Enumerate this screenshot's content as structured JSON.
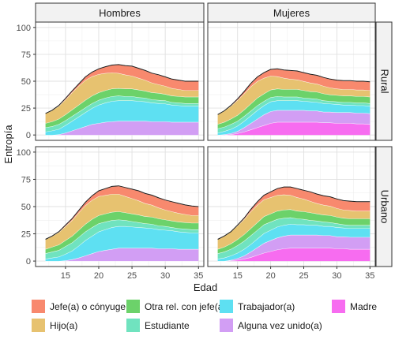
{
  "chart_data": {
    "type": "area",
    "stacked": true,
    "xlabel": "Edad",
    "ylabel": "Entropía",
    "xlim": [
      10.5,
      35.8
    ],
    "ylim": [
      -5,
      105
    ],
    "x_ticks": [
      15,
      20,
      25,
      30,
      35
    ],
    "y_ticks": [
      0,
      25,
      50,
      75,
      100
    ],
    "grid": true,
    "legend_position": "bottom",
    "facet_columns": [
      "Hombres",
      "Mujeres"
    ],
    "facet_rows": [
      "Rural",
      "Urbano"
    ],
    "x": [
      12,
      13,
      14,
      15,
      16,
      17,
      18,
      19,
      20,
      21,
      22,
      23,
      24,
      25,
      26,
      27,
      28,
      29,
      30,
      31,
      32,
      33,
      34,
      35
    ],
    "series_order": [
      "Madre",
      "Alguna vez unido(a)",
      "Trabajador(a)",
      "Estudiante",
      "Otra rel. con jefe(a)",
      "Hijo(a)",
      "Jefe(a) o cónyuge"
    ],
    "colors": {
      "Jefe(a) o cónyuge": "#f8896e",
      "Otra rel. con jefe(a)": "#6cd26a",
      "Trabajador(a)": "#5ee0f2",
      "Madre": "#f76cf0",
      "Hijo(a)": "#e7c270",
      "Estudiante": "#70e3bf",
      "Alguna vez unido(a)": "#d29ef4"
    },
    "legend": [
      "Jefe(a) o cónyuge",
      "Otra rel. con jefe(a)",
      "Trabajador(a)",
      "Madre",
      "Hijo(a)",
      "Estudiante",
      "Alguna vez unido(a)"
    ],
    "panels": [
      {
        "column": "Hombres",
        "row": "Rural",
        "series": [
          {
            "name": "Madre",
            "values": [
              0,
              0,
              0,
              0,
              0,
              0,
              0,
              0,
              0,
              0,
              0,
              0,
              0,
              0,
              0,
              0,
              0,
              0,
              0,
              0,
              0,
              0,
              0,
              0
            ]
          },
          {
            "name": "Alguna vez unido(a)",
            "values": [
              0,
              0,
              0.5,
              2,
              4,
              6,
              8,
              10,
              11,
              12,
              12.5,
              13,
              13,
              13,
              13,
              13,
              12.5,
              12.5,
              12.5,
              12,
              12,
              12,
              12,
              12
            ]
          },
          {
            "name": "Trabajador(a)",
            "values": [
              3,
              4,
              5,
              7,
              9,
              11,
              13,
              15,
              17,
              18,
              19,
              19,
              19,
              19,
              18.5,
              18,
              17.5,
              17,
              16.5,
              16,
              15.5,
              15,
              15,
              15
            ]
          },
          {
            "name": "Estudiante",
            "values": [
              4,
              4,
              4.5,
              4.5,
              4.5,
              4.5,
              4.5,
              4.5,
              4.5,
              4.5,
              4.5,
              4.5,
              4,
              4,
              3.5,
              3.5,
              3,
              3,
              3,
              2.5,
              2.5,
              2.5,
              2.5,
              2.5
            ]
          },
          {
            "name": "Otra rel. con jefe(a)",
            "values": [
              4,
              4.5,
              5,
              5.5,
              6,
              6.5,
              7,
              7,
              7,
              7,
              7,
              7,
              7,
              7,
              7,
              6.5,
              6.5,
              6.5,
              6,
              6,
              6,
              6,
              6,
              6
            ]
          },
          {
            "name": "Hijo(a)",
            "values": [
              9,
              10.5,
              12,
              14,
              16,
              17.5,
              18.5,
              18,
              17,
              16,
              15,
              14,
              13,
              12,
              11,
              10,
              9,
              8,
              7.5,
              7,
              6.5,
              6,
              6,
              6
            ]
          },
          {
            "name": "Jefe(a) o cónyuge",
            "values": [
              0,
              0,
              0.5,
              1,
              1.5,
              2,
              3,
              4,
              5,
              6,
              7,
              8,
              8.5,
              9,
              9,
              9,
              9,
              9,
              8.5,
              8.5,
              8.5,
              8.5,
              8.5,
              8.5
            ]
          }
        ]
      },
      {
        "column": "Mujeres",
        "row": "Rural",
        "series": [
          {
            "name": "Madre",
            "values": [
              0,
              0,
              0.5,
              1.5,
              3,
              5,
              7,
              9,
              11,
              12,
              12,
              12,
              12,
              12,
              12,
              12,
              11.5,
              11.5,
              11,
              11,
              11,
              10.5,
              10.5,
              10
            ]
          },
          {
            "name": "Alguna vez unido(a)",
            "values": [
              0,
              0.5,
              1,
              2,
              4,
              6,
              8,
              10,
              11,
              11,
              11,
              11,
              11,
              11,
              10.5,
              10.5,
              10,
              10,
              10,
              10,
              10,
              10,
              10,
              10
            ]
          },
          {
            "name": "Trabajador(a)",
            "values": [
              2,
              3,
              4,
              5,
              6,
              7,
              8,
              8.5,
              9,
              9,
              9,
              9,
              9,
              8.5,
              8.5,
              8,
              8,
              7.5,
              7.5,
              7,
              7,
              7,
              7,
              7
            ]
          },
          {
            "name": "Estudiante",
            "values": [
              4,
              4,
              4.5,
              4.5,
              4.5,
              4.5,
              4.5,
              4,
              4,
              4,
              3.5,
              3.5,
              3.5,
              3,
              3,
              3,
              2.5,
              2.5,
              2.5,
              2.5,
              2.5,
              2.5,
              2.5,
              2.5
            ]
          },
          {
            "name": "Otra rel. con jefe(a)",
            "values": [
              4,
              4.5,
              5,
              5.5,
              6,
              6.5,
              7,
              7,
              7,
              7,
              7,
              7,
              7,
              7,
              6.5,
              6.5,
              6.5,
              6,
              6,
              6,
              6,
              6,
              6,
              6
            ]
          },
          {
            "name": "Hijo(a)",
            "values": [
              9,
              10.5,
              12,
              14,
              15,
              16,
              15.5,
              14.5,
              13,
              11.5,
              10.5,
              9.5,
              9,
              8.5,
              8,
              7.5,
              7,
              6.5,
              6,
              6,
              6,
              6,
              6,
              6
            ]
          },
          {
            "name": "Jefe(a) o cónyuge",
            "values": [
              0,
              0,
              0.5,
              1,
              2,
              3,
              4,
              5,
              6,
              7,
              7.5,
              8,
              8,
              8,
              8,
              8,
              8,
              8,
              8,
              8,
              8,
              8,
              8,
              8
            ]
          }
        ]
      },
      {
        "column": "Hombres",
        "row": "Urbano",
        "series": [
          {
            "name": "Madre",
            "values": [
              0,
              0,
              0,
              0,
              0,
              0,
              0,
              0,
              0,
              0,
              0,
              0,
              0,
              0,
              0,
              0,
              0,
              0,
              0,
              0,
              0,
              0,
              0,
              0
            ]
          },
          {
            "name": "Alguna vez unido(a)",
            "values": [
              0,
              0,
              0,
              0.5,
              1.5,
              3,
              5,
              7,
              9,
              10,
              11,
              12,
              12,
              12,
              12,
              12,
              12,
              11.5,
              11.5,
              11.5,
              11,
              11,
              11,
              11
            ]
          },
          {
            "name": "Trabajador(a)",
            "values": [
              2,
              3,
              4,
              6,
              8,
              11,
              14,
              16,
              18,
              19,
              20,
              20,
              20,
              19.5,
              19,
              18.5,
              18,
              17.5,
              17,
              16.5,
              16,
              15.5,
              15,
              15
            ]
          },
          {
            "name": "Estudiante",
            "values": [
              5,
              5.5,
              6,
              7,
              7.5,
              8,
              8,
              8,
              7.5,
              7,
              6.5,
              6,
              5.5,
              5,
              4.5,
              4,
              4,
              3.5,
              3.5,
              3,
              3,
              3,
              3,
              3
            ]
          },
          {
            "name": "Otra rel. con jefe(a)",
            "values": [
              4,
              4.5,
              5,
              5.5,
              6,
              6.5,
              7,
              7.5,
              7.5,
              7.5,
              7.5,
              7.5,
              7,
              7,
              7,
              6.5,
              6.5,
              6.5,
              6,
              6,
              6,
              6,
              6,
              6
            ]
          },
          {
            "name": "Hijo(a)",
            "values": [
              9,
              10,
              11.5,
              13,
              14.5,
              16,
              17,
              17.5,
              17.5,
              17,
              16.5,
              16,
              15,
              14,
              13,
              12,
              11,
              10,
              9,
              8.5,
              8,
              7.5,
              7,
              7
            ]
          },
          {
            "name": "Jefe(a) o cónyuge",
            "values": [
              0,
              0,
              0.5,
              1,
              1.5,
              2,
              3,
              4,
              5,
              6,
              7,
              7.5,
              8,
              8.5,
              9,
              9,
              9,
              9,
              9,
              9,
              9,
              8.5,
              8.5,
              8
            ]
          }
        ]
      },
      {
        "column": "Mujeres",
        "row": "Urbano",
        "series": [
          {
            "name": "Madre",
            "values": [
              0,
              0,
              0.5,
              1,
              2,
              3.5,
              5.5,
              7.5,
              9,
              10.5,
              11.5,
              12,
              12,
              12,
              12,
              12,
              12,
              12,
              11.5,
              11.5,
              11,
              11,
              11,
              11
            ]
          },
          {
            "name": "Alguna vez unido(a)",
            "values": [
              0,
              0,
              0.5,
              1.5,
              3,
              5,
              7,
              9,
              10,
              11,
              11.5,
              12,
              12,
              12,
              12,
              12,
              11.5,
              11.5,
              11,
              11,
              11,
              11,
              11,
              11
            ]
          },
          {
            "name": "Trabajador(a)",
            "values": [
              2,
              3,
              4,
              5,
              6,
              7,
              8,
              9,
              9.5,
              10,
              10,
              10,
              9.5,
              9.5,
              9,
              9,
              8.5,
              8.5,
              8.5,
              8,
              8,
              8,
              8,
              8
            ]
          },
          {
            "name": "Estudiante",
            "values": [
              5,
              5.5,
              6,
              7,
              7.5,
              8,
              8,
              8,
              7.5,
              7,
              6.5,
              6,
              5.5,
              5,
              4.5,
              4,
              4,
              3.5,
              3.5,
              3,
              3,
              3,
              3,
              3
            ]
          },
          {
            "name": "Otra rel. con jefe(a)",
            "values": [
              4,
              4.5,
              5,
              5.5,
              6,
              6.5,
              7,
              7.5,
              7.5,
              7.5,
              7.5,
              7.5,
              7,
              7,
              7,
              6.5,
              6.5,
              6.5,
              6,
              6,
              6,
              6,
              6,
              6
            ]
          },
          {
            "name": "Hijo(a)",
            "values": [
              9,
              10,
              11,
              12.5,
              14,
              15.5,
              16,
              15.5,
              15,
              14.5,
              14,
              13,
              12.5,
              11.5,
              10.5,
              9.5,
              9,
              8.5,
              8,
              7.5,
              7.5,
              7,
              7,
              7
            ]
          },
          {
            "name": "Jefe(a) o cónyuge",
            "values": [
              0,
              0,
              0,
              0.5,
              1,
              2,
              3,
              4,
              5,
              6,
              7,
              7.5,
              8,
              8,
              8.5,
              8.5,
              8.5,
              8.5,
              8.5,
              8.5,
              8.5,
              8.5,
              8.5,
              8.5
            ]
          }
        ]
      }
    ]
  }
}
